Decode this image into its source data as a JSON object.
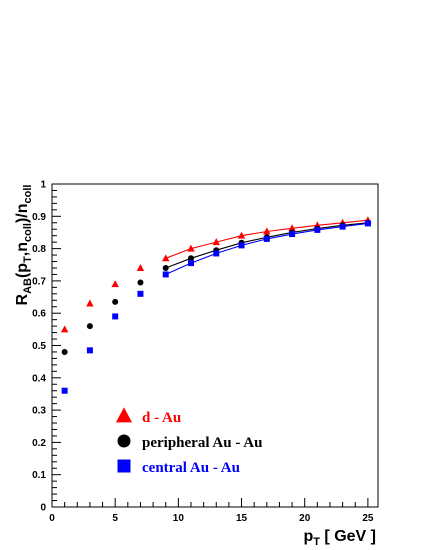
{
  "chart_data": {
    "type": "scatter",
    "title": "",
    "xlabel": {
      "main": "p",
      "sub": "T",
      "rest": " [ GeV ]"
    },
    "ylabel": {
      "parts": [
        {
          "t": "R",
          "sub": false
        },
        {
          "t": "AB",
          "sub": true
        },
        {
          "t": "(p",
          "sub": false
        },
        {
          "t": "T",
          "sub": true
        },
        {
          "t": ",n",
          "sub": false
        },
        {
          "t": "coll",
          "sub": true
        },
        {
          "t": ")/n",
          "sub": false
        },
        {
          "t": "coll",
          "sub": true
        }
      ]
    },
    "xlim": [
      0,
      25.8
    ],
    "ylim": [
      0,
      1
    ],
    "xticks": [
      "0",
      "5",
      "10",
      "15",
      "20",
      "25"
    ],
    "yticks": [
      "0",
      "0.1",
      "0.2",
      "0.3",
      "0.4",
      "0.5",
      "0.6",
      "0.7",
      "0.8",
      "0.9",
      "1"
    ],
    "grid": false,
    "legend_position": "bottom-left",
    "series": [
      {
        "name": "d - Au",
        "color": "#ff0000",
        "marker": "triangle",
        "x": [
          1,
          3,
          5,
          7,
          9,
          11,
          13,
          15,
          17,
          19,
          21,
          23,
          25
        ],
        "y": [
          0.55,
          0.63,
          0.69,
          0.74,
          0.77,
          0.8,
          0.82,
          0.84,
          0.853,
          0.863,
          0.872,
          0.88,
          0.888
        ]
      },
      {
        "name": "peripheral Au - Au",
        "color": "#000000",
        "marker": "circle",
        "x": [
          1,
          3,
          5,
          7,
          9,
          11,
          13,
          15,
          17,
          19,
          21,
          23,
          25
        ],
        "y": [
          0.48,
          0.56,
          0.635,
          0.695,
          0.74,
          0.77,
          0.795,
          0.818,
          0.835,
          0.85,
          0.862,
          0.872,
          0.88
        ]
      },
      {
        "name": "central Au - Au",
        "color": "#0000ff",
        "marker": "square",
        "x": [
          1,
          3,
          5,
          7,
          9,
          11,
          13,
          15,
          17,
          19,
          21,
          23,
          25
        ],
        "y": [
          0.36,
          0.485,
          0.59,
          0.66,
          0.72,
          0.755,
          0.785,
          0.81,
          0.83,
          0.845,
          0.858,
          0.868,
          0.878
        ]
      }
    ]
  }
}
